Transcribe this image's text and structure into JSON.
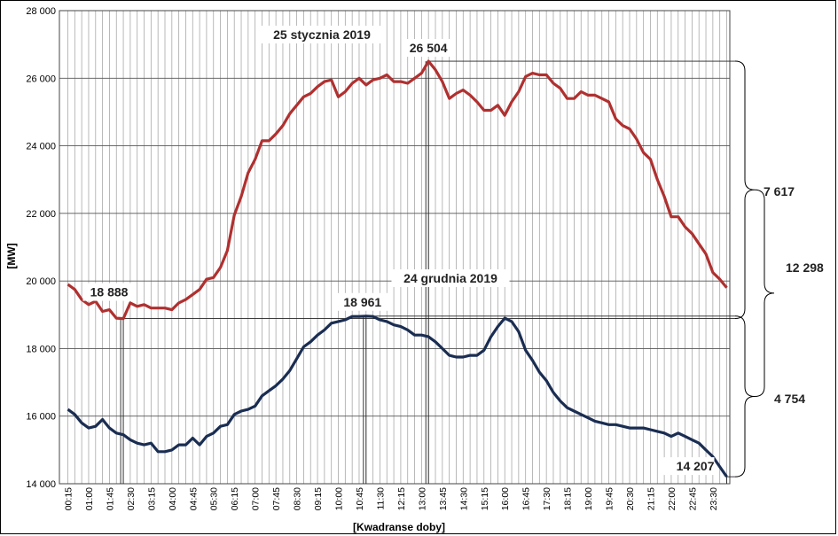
{
  "chart_data": {
    "type": "line",
    "title": "",
    "xlabel": "[Kwadranse doby]",
    "ylabel": "[MW]",
    "ylim": [
      14000,
      28000
    ],
    "yticks": [
      14000,
      16000,
      18000,
      20000,
      22000,
      24000,
      26000,
      28000
    ],
    "ytick_labels": [
      "14 000",
      "16 000",
      "18 000",
      "20 000",
      "22 000",
      "24 000",
      "26 000",
      "28 000"
    ],
    "xtick_labels": [
      "00:15",
      "01:00",
      "01:45",
      "02:30",
      "03:15",
      "04:00",
      "04:45",
      "05:30",
      "06:15",
      "07:00",
      "07:45",
      "08:30",
      "09:15",
      "10:00",
      "10:45",
      "11:30",
      "12:15",
      "13:00",
      "13:45",
      "14:30",
      "15:15",
      "16:00",
      "16:45",
      "17:30",
      "18:15",
      "19:00",
      "19:45",
      "20:30",
      "21:15",
      "22:00",
      "22:45",
      "23:30"
    ],
    "grid": true,
    "series": [
      {
        "name": "25 stycznia 2019",
        "color": "#b03030",
        "values": [
          19900,
          19750,
          19450,
          19300,
          19400,
          19100,
          19150,
          18900,
          18888,
          19350,
          19250,
          19300,
          19200,
          19200,
          19200,
          19150,
          19350,
          19450,
          19600,
          19750,
          20050,
          20100,
          20400,
          20900,
          21950,
          22500,
          23200,
          23600,
          24150,
          24150,
          24350,
          24600,
          24950,
          25200,
          25450,
          25550,
          25750,
          25900,
          25950,
          25450,
          25600,
          25850,
          26000,
          25800,
          25950,
          26000,
          26100,
          25900,
          25900,
          25850,
          26000,
          26150,
          26504,
          26250,
          25900,
          25400,
          25550,
          25650,
          25500,
          25300,
          25050,
          25050,
          25200,
          24900,
          25300,
          25600,
          26050,
          26150,
          26100,
          26100,
          25850,
          25700,
          25400,
          25400,
          25600,
          25500,
          25500,
          25400,
          25300,
          24800,
          24600,
          24500,
          24200,
          23800,
          23600,
          23000,
          22500,
          21900,
          21900,
          21600,
          21400,
          21100,
          20800,
          20250,
          20050,
          19800
        ]
      },
      {
        "name": "24 grudnia 2019",
        "color": "#1a2d52",
        "values": [
          16200,
          16050,
          15800,
          15650,
          15700,
          15900,
          15650,
          15500,
          15450,
          15300,
          15200,
          15150,
          15200,
          14950,
          14950,
          15000,
          15150,
          15150,
          15350,
          15150,
          15400,
          15500,
          15700,
          15750,
          16050,
          16150,
          16200,
          16300,
          16600,
          16750,
          16900,
          17100,
          17350,
          17700,
          18050,
          18200,
          18400,
          18550,
          18750,
          18800,
          18850,
          18950,
          18950,
          18961,
          18950,
          18850,
          18800,
          18700,
          18650,
          18550,
          18400,
          18400,
          18350,
          18200,
          18000,
          17800,
          17750,
          17750,
          17800,
          17800,
          17950,
          18350,
          18650,
          18900,
          18800,
          18500,
          17950,
          17650,
          17300,
          17050,
          16700,
          16450,
          16250,
          16150,
          16050,
          15950,
          15850,
          15800,
          15750,
          15750,
          15700,
          15650,
          15650,
          15650,
          15600,
          15550,
          15500,
          15400,
          15500,
          15400,
          15300,
          15200,
          15000,
          14800,
          14500,
          14207
        ]
      }
    ],
    "annotations": {
      "series1_peak": "26 504",
      "series1_min": "18 888",
      "series2_peak": "18 961",
      "series2_min": "14 207",
      "range_series1": "7 617",
      "range_overall": "12 298",
      "range_series2": "4 754"
    }
  }
}
